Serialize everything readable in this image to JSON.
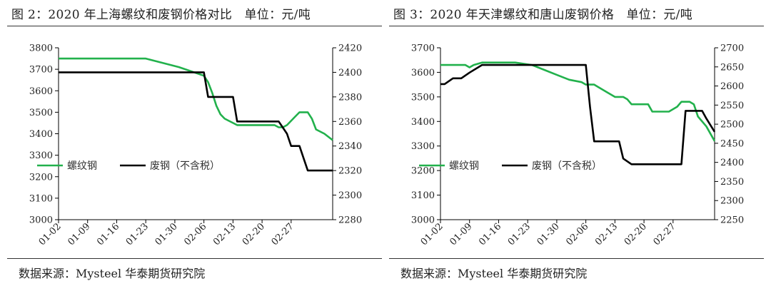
{
  "charts": [
    {
      "title": "图 2：2020 年上海螺纹和废钢价格对比　单位：元/吨",
      "source": "数据来源：Mysteel 华泰期货研究院"
    },
    {
      "title": "图 3：2020 年天津螺纹和唐山废钢价格　单位：元/吨",
      "source": "数据来源：Mysteel 华泰期货研究院"
    }
  ],
  "chart_data": [
    {
      "type": "line",
      "grid": false,
      "x_tick_labels": [
        "01-02",
        "01-09",
        "01-16",
        "01-23",
        "01-30",
        "02-06",
        "02-13",
        "02-20",
        "02-27"
      ],
      "x_range": [
        0,
        66
      ],
      "y_left": {
        "min": 3000,
        "max": 3800,
        "step": 100
      },
      "y_right": {
        "min": 2280,
        "max": 2420,
        "step": 20
      },
      "legend_position": "lower-left",
      "series": [
        {
          "name": "螺纹钢",
          "color": "#22b14c",
          "axis": "left",
          "points": [
            [
              0,
              3750
            ],
            [
              7,
              3750
            ],
            [
              14,
              3750
            ],
            [
              21,
              3750
            ],
            [
              25,
              3730
            ],
            [
              29,
              3710
            ],
            [
              32,
              3690
            ],
            [
              35,
              3670
            ],
            [
              36,
              3640
            ],
            [
              37,
              3590
            ],
            [
              38,
              3530
            ],
            [
              39,
              3490
            ],
            [
              40,
              3470
            ],
            [
              41,
              3460
            ],
            [
              42,
              3450
            ],
            [
              43,
              3440
            ],
            [
              46,
              3440
            ],
            [
              49,
              3440
            ],
            [
              52,
              3440
            ],
            [
              53,
              3430
            ],
            [
              54,
              3430
            ],
            [
              55,
              3440
            ],
            [
              56,
              3460
            ],
            [
              57,
              3480
            ],
            [
              58,
              3500
            ],
            [
              60,
              3500
            ],
            [
              61,
              3470
            ],
            [
              62,
              3420
            ],
            [
              64,
              3400
            ],
            [
              66,
              3370
            ]
          ]
        },
        {
          "name": "废钢（不含税）",
          "color": "#000000",
          "axis": "right",
          "points": [
            [
              0,
              2400
            ],
            [
              7,
              2400
            ],
            [
              14,
              2400
            ],
            [
              21,
              2400
            ],
            [
              28,
              2400
            ],
            [
              35,
              2400
            ],
            [
              36,
              2380
            ],
            [
              39,
              2380
            ],
            [
              42,
              2380
            ],
            [
              43,
              2360
            ],
            [
              46,
              2360
            ],
            [
              49,
              2360
            ],
            [
              52,
              2360
            ],
            [
              53,
              2360
            ],
            [
              54,
              2355
            ],
            [
              55,
              2350
            ],
            [
              56,
              2340
            ],
            [
              57,
              2340
            ],
            [
              58,
              2340
            ],
            [
              59,
              2330
            ],
            [
              60,
              2320
            ],
            [
              62,
              2320
            ],
            [
              64,
              2320
            ],
            [
              66,
              2320
            ]
          ]
        }
      ]
    },
    {
      "type": "line",
      "grid": false,
      "x_tick_labels": [
        "01-02",
        "01-09",
        "01-16",
        "01-23",
        "01-30",
        "02-06",
        "02-13",
        "02-20",
        "02-27"
      ],
      "x_range": [
        0,
        66
      ],
      "y_left": {
        "min": 3000,
        "max": 3700,
        "step": 100
      },
      "y_right": {
        "min": 2250,
        "max": 2700,
        "step": 50
      },
      "legend_position": "lower-left",
      "series": [
        {
          "name": "螺纹钢",
          "color": "#22b14c",
          "axis": "left",
          "points": [
            [
              0,
              3630
            ],
            [
              4,
              3630
            ],
            [
              6,
              3630
            ],
            [
              7,
              3620
            ],
            [
              8,
              3630
            ],
            [
              10,
              3640
            ],
            [
              14,
              3640
            ],
            [
              18,
              3640
            ],
            [
              22,
              3630
            ],
            [
              25,
              3610
            ],
            [
              28,
              3590
            ],
            [
              31,
              3570
            ],
            [
              34,
              3560
            ],
            [
              35,
              3550
            ],
            [
              37,
              3550
            ],
            [
              38,
              3540
            ],
            [
              40,
              3520
            ],
            [
              42,
              3500
            ],
            [
              44,
              3500
            ],
            [
              45,
              3490
            ],
            [
              46,
              3470
            ],
            [
              48,
              3470
            ],
            [
              50,
              3470
            ],
            [
              51,
              3440
            ],
            [
              53,
              3440
            ],
            [
              55,
              3440
            ],
            [
              57,
              3460
            ],
            [
              58,
              3480
            ],
            [
              60,
              3480
            ],
            [
              61,
              3470
            ],
            [
              62,
              3420
            ],
            [
              64,
              3380
            ],
            [
              66,
              3320
            ]
          ]
        },
        {
          "name": "废钢（不含税）",
          "color": "#000000",
          "axis": "right",
          "points": [
            [
              0,
              2605
            ],
            [
              1,
              2605
            ],
            [
              3,
              2620
            ],
            [
              5,
              2620
            ],
            [
              7,
              2635
            ],
            [
              10,
              2655
            ],
            [
              14,
              2655
            ],
            [
              21,
              2655
            ],
            [
              28,
              2655
            ],
            [
              35,
              2655
            ],
            [
              36,
              2545
            ],
            [
              37,
              2455
            ],
            [
              40,
              2455
            ],
            [
              43,
              2455
            ],
            [
              44,
              2410
            ],
            [
              46,
              2395
            ],
            [
              49,
              2395
            ],
            [
              52,
              2395
            ],
            [
              55,
              2395
            ],
            [
              58,
              2395
            ],
            [
              59,
              2535
            ],
            [
              61,
              2535
            ],
            [
              63,
              2535
            ],
            [
              64,
              2515
            ],
            [
              66,
              2480
            ]
          ]
        }
      ]
    }
  ]
}
